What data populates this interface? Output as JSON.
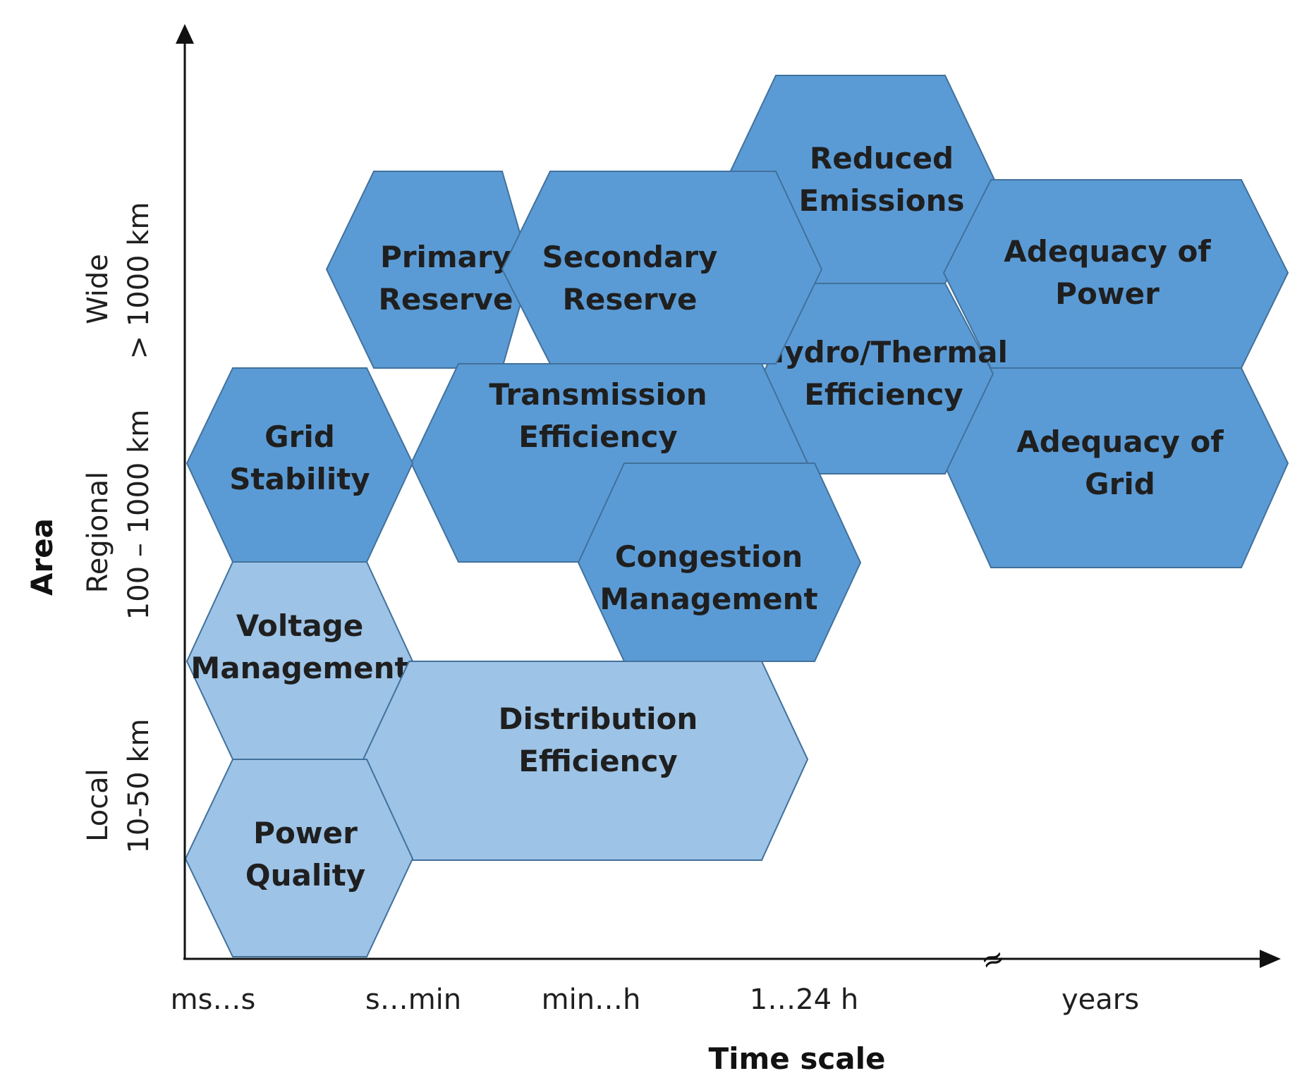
{
  "colors": {
    "dark_fill": "#5b9bd5",
    "light_fill": "#9dc3e6",
    "stroke": "#41719c",
    "axis": "#111111",
    "text": "#1f1f1f"
  },
  "axes": {
    "x_title": "Time scale",
    "y_title": "Area",
    "x_ticks": [
      "ms…s",
      "s…min",
      "min…h",
      "1…24 h",
      "years"
    ],
    "break_mark": "≈"
  },
  "area_bands": [
    {
      "name": "Wide",
      "range": "> 1000 km"
    },
    {
      "name": "Regional",
      "range": "100 – 1000 km"
    },
    {
      "name": "Local",
      "range": "10-50 km"
    }
  ],
  "hexagons": [
    {
      "id": "reduced-emissions",
      "lines": [
        "Reduced",
        "Emissions"
      ],
      "shade": "dark"
    },
    {
      "id": "adequacy-of-power",
      "lines": [
        "Adequacy of",
        "Power"
      ],
      "shade": "dark"
    },
    {
      "id": "adequacy-of-grid",
      "lines": [
        "Adequacy of",
        "Grid"
      ],
      "shade": "dark"
    },
    {
      "id": "hydro-thermal-efficiency",
      "lines": [
        "Hydro/Thermal",
        "Efficiency"
      ],
      "shade": "dark"
    },
    {
      "id": "primary-reserve",
      "lines": [
        "Primary",
        "Reserve"
      ],
      "shade": "dark"
    },
    {
      "id": "secondary-reserve",
      "lines": [
        "Secondary",
        "Reserve"
      ],
      "shade": "dark"
    },
    {
      "id": "transmission-efficiency",
      "lines": [
        "Transmission",
        "Efficiency"
      ],
      "shade": "dark"
    },
    {
      "id": "congestion-management",
      "lines": [
        "Congestion",
        "Management"
      ],
      "shade": "dark"
    },
    {
      "id": "grid-stability",
      "lines": [
        "Grid",
        "Stability"
      ],
      "shade": "dark"
    },
    {
      "id": "voltage-management",
      "lines": [
        "Voltage",
        "Management"
      ],
      "shade": "light"
    },
    {
      "id": "distribution-efficiency",
      "lines": [
        "Distribution",
        "Efficiency"
      ],
      "shade": "light"
    },
    {
      "id": "power-quality",
      "lines": [
        "Power",
        "Quality"
      ],
      "shade": "light"
    }
  ]
}
